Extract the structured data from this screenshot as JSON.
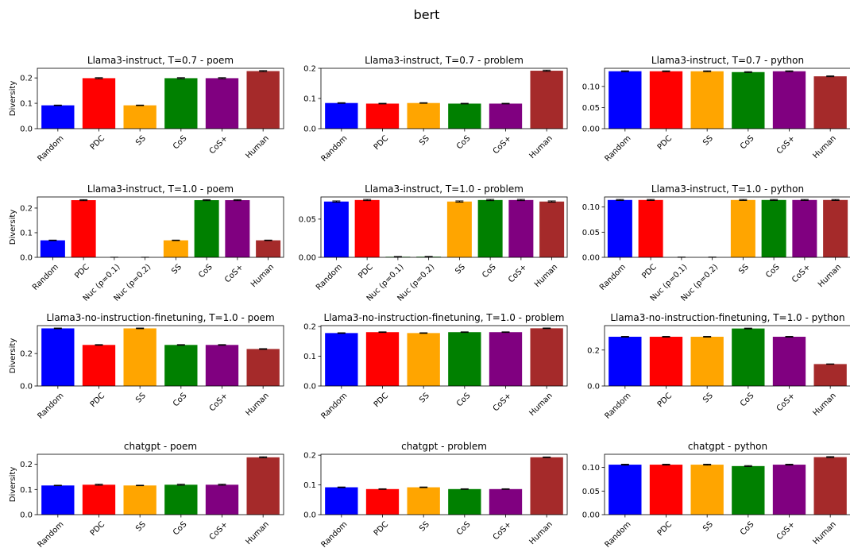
{
  "figure": {
    "suptitle": "bert"
  },
  "palette": {
    "Random": "#0000ff",
    "PDC": "#ff0000",
    "Nuc (p=0.1)": "#008000",
    "Nuc (p=0.2)": "#008000",
    "SS": "#ffa500",
    "CoS": "#008000",
    "CoS+": "#800080",
    "Human": "#a52a2a"
  },
  "chart_data": [
    {
      "type": "bar",
      "title": "Llama3-instruct, T=0.7 - poem",
      "ylabel": "Diversity",
      "categories": [
        "Random",
        "PDC",
        "SS",
        "CoS",
        "CoS+",
        "Human"
      ],
      "values": [
        0.092,
        0.199,
        0.092,
        0.199,
        0.199,
        0.227
      ],
      "errors": [
        0.001,
        0.002,
        0.001,
        0.002,
        0.002,
        0.002
      ],
      "ylim": [
        0,
        0.238
      ],
      "yticks": [
        "0.0",
        "0.1",
        "0.2"
      ],
      "ytick_values": [
        0,
        0.1,
        0.2
      ]
    },
    {
      "type": "bar",
      "title": "Llama3-instruct, T=0.7 - problem",
      "ylabel": "",
      "categories": [
        "Random",
        "PDC",
        "SS",
        "CoS",
        "CoS+",
        "Human"
      ],
      "values": [
        0.085,
        0.083,
        0.085,
        0.083,
        0.083,
        0.192
      ],
      "errors": [
        0.001,
        0.001,
        0.001,
        0.001,
        0.001,
        0.002
      ],
      "ylim": [
        0,
        0.2
      ],
      "yticks": [
        "0.0",
        "0.1",
        "0.2"
      ],
      "ytick_values": [
        0,
        0.1,
        0.2
      ]
    },
    {
      "type": "bar",
      "title": "Llama3-instruct, T=0.7 - python",
      "ylabel": "",
      "categories": [
        "Random",
        "PDC",
        "SS",
        "CoS",
        "CoS+",
        "Human"
      ],
      "values": [
        0.136,
        0.136,
        0.136,
        0.134,
        0.136,
        0.124
      ],
      "errors": [
        0.001,
        0.001,
        0.001,
        0.001,
        0.001,
        0.001
      ],
      "ylim": [
        0,
        0.143
      ],
      "yticks": [
        "0.00",
        "0.05",
        "0.10"
      ],
      "ytick_values": [
        0,
        0.05,
        0.1
      ]
    },
    {
      "type": "bar",
      "title": "Llama3-instruct, T=1.0 - poem",
      "ylabel": "Diversity",
      "categories": [
        "Random",
        "PDC",
        "Nuc (p=0.1)",
        "Nuc (p=0.2)",
        "SS",
        "CoS",
        "CoS+",
        "Human"
      ],
      "values": [
        0.069,
        0.232,
        0.0,
        0.0,
        0.069,
        0.232,
        0.232,
        0.069
      ],
      "errors": [
        0.001,
        0.002,
        0.0005,
        0.0005,
        0.001,
        0.002,
        0.002,
        0.001
      ],
      "ylim": [
        0,
        0.245
      ],
      "yticks": [
        "0.0",
        "0.1",
        "0.2"
      ],
      "ytick_values": [
        0,
        0.1,
        0.2
      ]
    },
    {
      "type": "bar",
      "title": "Llama3-instruct, T=1.0 - problem",
      "ylabel": "",
      "categories": [
        "Random",
        "PDC",
        "Nuc (p=0.1)",
        "Nuc (p=0.2)",
        "SS",
        "CoS",
        "CoS+",
        "Human"
      ],
      "values": [
        0.073,
        0.075,
        0.0007,
        0.0008,
        0.073,
        0.075,
        0.075,
        0.073
      ],
      "errors": [
        0.0008,
        0.0008,
        0.0004,
        0.0004,
        0.0008,
        0.0008,
        0.0008,
        0.0008
      ],
      "ylim": [
        0,
        0.079
      ],
      "yticks": [
        "0.00",
        "0.05"
      ],
      "ytick_values": [
        0,
        0.05
      ]
    },
    {
      "type": "bar",
      "title": "Llama3-instruct, T=1.0 - python",
      "ylabel": "",
      "categories": [
        "Random",
        "PDC",
        "Nuc (p=0.1)",
        "Nuc (p=0.2)",
        "SS",
        "CoS",
        "CoS+",
        "Human"
      ],
      "values": [
        0.114,
        0.114,
        0.0,
        0.0,
        0.114,
        0.114,
        0.114,
        0.114
      ],
      "errors": [
        0.001,
        0.001,
        0.0005,
        0.0005,
        0.001,
        0.001,
        0.001,
        0.001
      ],
      "ylim": [
        0,
        0.12
      ],
      "yticks": [
        "0.00",
        "0.05",
        "0.10"
      ],
      "ytick_values": [
        0,
        0.05,
        0.1
      ]
    },
    {
      "type": "bar",
      "title": "Llama3-no-instruction-finetuning, T=1.0 - poem",
      "ylabel": "Diversity",
      "categories": [
        "Random",
        "PDC",
        "SS",
        "CoS",
        "CoS+",
        "Human"
      ],
      "values": [
        0.355,
        0.253,
        0.355,
        0.253,
        0.253,
        0.228
      ],
      "errors": [
        0.002,
        0.002,
        0.002,
        0.002,
        0.002,
        0.002
      ],
      "ylim": [
        0,
        0.372
      ],
      "yticks": [
        "0.0",
        "0.2"
      ],
      "ytick_values": [
        0,
        0.2
      ]
    },
    {
      "type": "bar",
      "title": "Llama3-no-instruction-finetuning, T=1.0 - problem",
      "ylabel": "",
      "categories": [
        "Random",
        "PDC",
        "SS",
        "CoS",
        "CoS+",
        "Human"
      ],
      "values": [
        0.178,
        0.181,
        0.178,
        0.181,
        0.181,
        0.194
      ],
      "errors": [
        0.001,
        0.001,
        0.001,
        0.001,
        0.001,
        0.001
      ],
      "ylim": [
        0,
        0.203
      ],
      "yticks": [
        "0.0",
        "0.1",
        "0.2"
      ],
      "ytick_values": [
        0,
        0.1,
        0.2
      ]
    },
    {
      "type": "bar",
      "title": "Llama3-no-instruction-finetuning, T=1.0 - python",
      "ylabel": "",
      "categories": [
        "Random",
        "PDC",
        "SS",
        "CoS",
        "CoS+",
        "Human"
      ],
      "values": [
        0.274,
        0.274,
        0.274,
        0.32,
        0.274,
        0.122
      ],
      "errors": [
        0.002,
        0.002,
        0.002,
        0.002,
        0.002,
        0.001
      ],
      "ylim": [
        0,
        0.336
      ],
      "yticks": [
        "0.0",
        "0.2"
      ],
      "ytick_values": [
        0,
        0.2
      ]
    },
    {
      "type": "bar",
      "title": "chatgpt - poem",
      "ylabel": "Diversity",
      "categories": [
        "Random",
        "PDC",
        "SS",
        "CoS",
        "CoS+",
        "Human"
      ],
      "values": [
        0.116,
        0.119,
        0.116,
        0.119,
        0.119,
        0.228
      ],
      "errors": [
        0.001,
        0.002,
        0.001,
        0.002,
        0.002,
        0.002
      ],
      "ylim": [
        0,
        0.24
      ],
      "yticks": [
        "0.0",
        "0.1",
        "0.2"
      ],
      "ytick_values": [
        0,
        0.1,
        0.2
      ]
    },
    {
      "type": "bar",
      "title": "chatgpt - problem",
      "ylabel": "",
      "categories": [
        "Random",
        "PDC",
        "SS",
        "CoS",
        "CoS+",
        "Human"
      ],
      "values": [
        0.092,
        0.086,
        0.092,
        0.086,
        0.086,
        0.193
      ],
      "errors": [
        0.001,
        0.001,
        0.001,
        0.001,
        0.001,
        0.001
      ],
      "ylim": [
        0,
        0.203
      ],
      "yticks": [
        "0.0",
        "0.1",
        "0.2"
      ],
      "ytick_values": [
        0,
        0.1,
        0.2
      ]
    },
    {
      "type": "bar",
      "title": "chatgpt - python",
      "ylabel": "",
      "categories": [
        "Random",
        "PDC",
        "SS",
        "CoS",
        "CoS+",
        "Human"
      ],
      "values": [
        0.106,
        0.106,
        0.106,
        0.103,
        0.106,
        0.122
      ],
      "errors": [
        0.001,
        0.001,
        0.001,
        0.001,
        0.001,
        0.001
      ],
      "ylim": [
        0,
        0.128
      ],
      "yticks": [
        "0.00",
        "0.05",
        "0.10"
      ],
      "ytick_values": [
        0,
        0.05,
        0.1
      ]
    }
  ]
}
